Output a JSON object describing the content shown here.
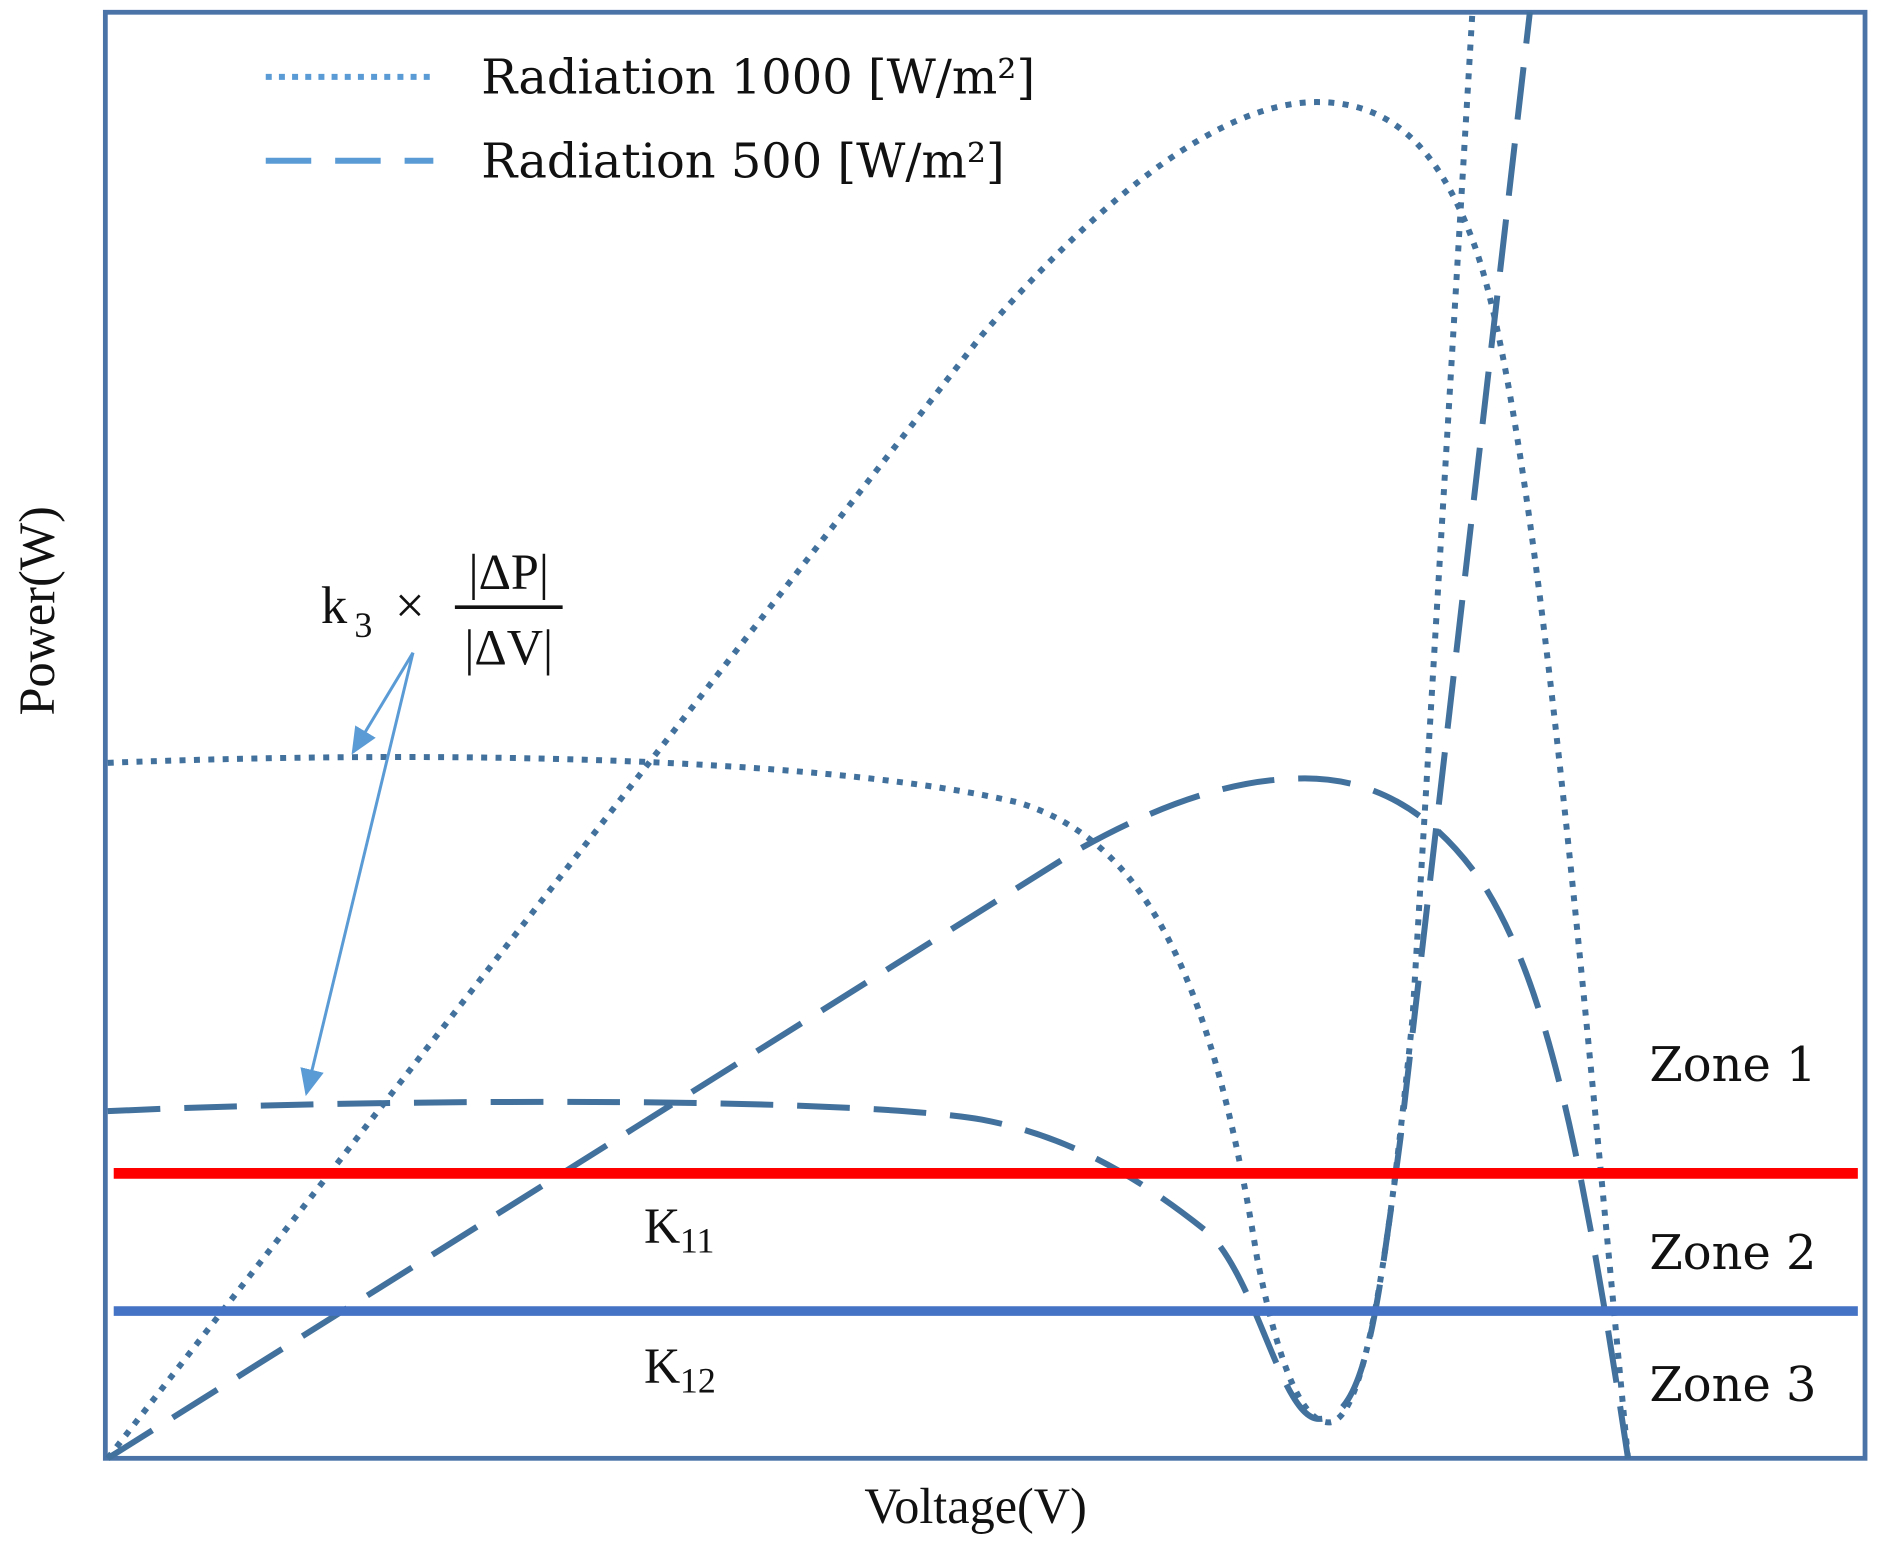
{
  "legend": [
    {
      "label": "Radiation 1000 [W/m²]"
    },
    {
      "label": "Radiation 500 [W/m²]"
    }
  ],
  "axes": {
    "x_label": "Voltage(V)",
    "y_label": "Power(W)"
  },
  "annotation": {
    "k": "k",
    "k_sub": "3",
    "times": "×",
    "numerator": "|ΔP|",
    "denominator": "|ΔV|"
  },
  "thresholds": [
    {
      "symbol": "K",
      "sub": "11"
    },
    {
      "symbol": "K",
      "sub": "12"
    }
  ],
  "zones": [
    "Zone 1",
    "Zone 2",
    "Zone 3"
  ]
}
